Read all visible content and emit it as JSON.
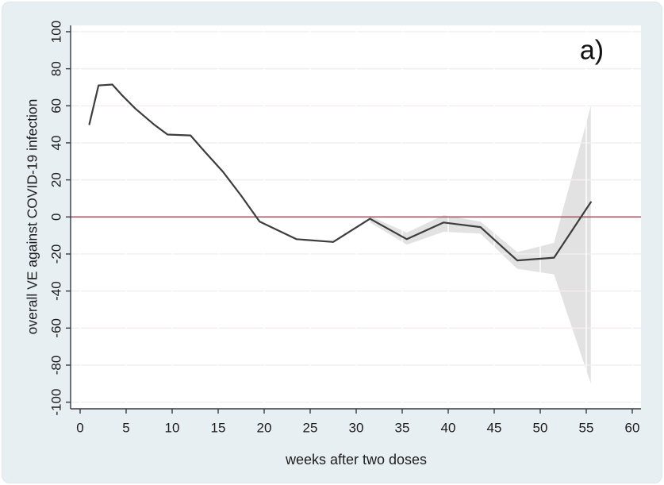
{
  "figure": {
    "panel_label": "a)",
    "colors": {
      "figure_background": "#e8eff3",
      "plot_background": "#ffffff",
      "grid_horizontal": "#f2eef0",
      "grid_vertical_over_band": "#ffffff",
      "confidence_band": "#e2e2e2",
      "ve_line": "#3d3d3d",
      "zero_reference_line": "#b5516b",
      "axis": "#333a40",
      "text": "#1d1d1d"
    }
  },
  "chart_data": {
    "type": "line",
    "title": "",
    "xlabel": "weeks after two doses",
    "ylabel": "overall VE against COVID-19 infection",
    "xlim": [
      0,
      60
    ],
    "ylim": [
      -100,
      100
    ],
    "x_ticks": [
      0,
      5,
      10,
      15,
      20,
      25,
      30,
      35,
      40,
      45,
      50,
      55,
      60
    ],
    "y_ticks": [
      100,
      80,
      60,
      40,
      20,
      0,
      -20,
      -40,
      -60,
      -80,
      -100
    ],
    "grid": "on",
    "legend_position": "none",
    "reference_line_y": 0,
    "series": [
      {
        "name": "overall VE point estimate",
        "kind": "line",
        "points": [
          [
            1,
            50
          ],
          [
            2,
            71
          ],
          [
            3.5,
            71.5
          ],
          [
            4.5,
            66
          ],
          [
            6,
            58.5
          ],
          [
            8,
            50
          ],
          [
            9.5,
            44.5
          ],
          [
            12,
            44
          ],
          [
            13.5,
            35.5
          ],
          [
            15.5,
            24.5
          ],
          [
            17.5,
            11.5
          ],
          [
            19.5,
            -2.5
          ],
          [
            23.5,
            -12
          ],
          [
            27.5,
            -13.5
          ],
          [
            31.5,
            -1
          ],
          [
            35.5,
            -12
          ],
          [
            39.5,
            -3
          ],
          [
            43.5,
            -5.5
          ],
          [
            47.5,
            -23.5
          ],
          [
            51.5,
            -22
          ],
          [
            55.5,
            8
          ]
        ]
      },
      {
        "name": "95% confidence band",
        "kind": "band",
        "points_week_lo_hi": [
          [
            31.5,
            -3,
            0.5
          ],
          [
            35.5,
            -15,
            -8.5
          ],
          [
            39.5,
            -8,
            1
          ],
          [
            43.5,
            -9,
            -2.5
          ],
          [
            47.5,
            -28,
            -19
          ],
          [
            51.5,
            -31,
            -14
          ],
          [
            55.5,
            -90,
            60
          ]
        ]
      }
    ]
  }
}
